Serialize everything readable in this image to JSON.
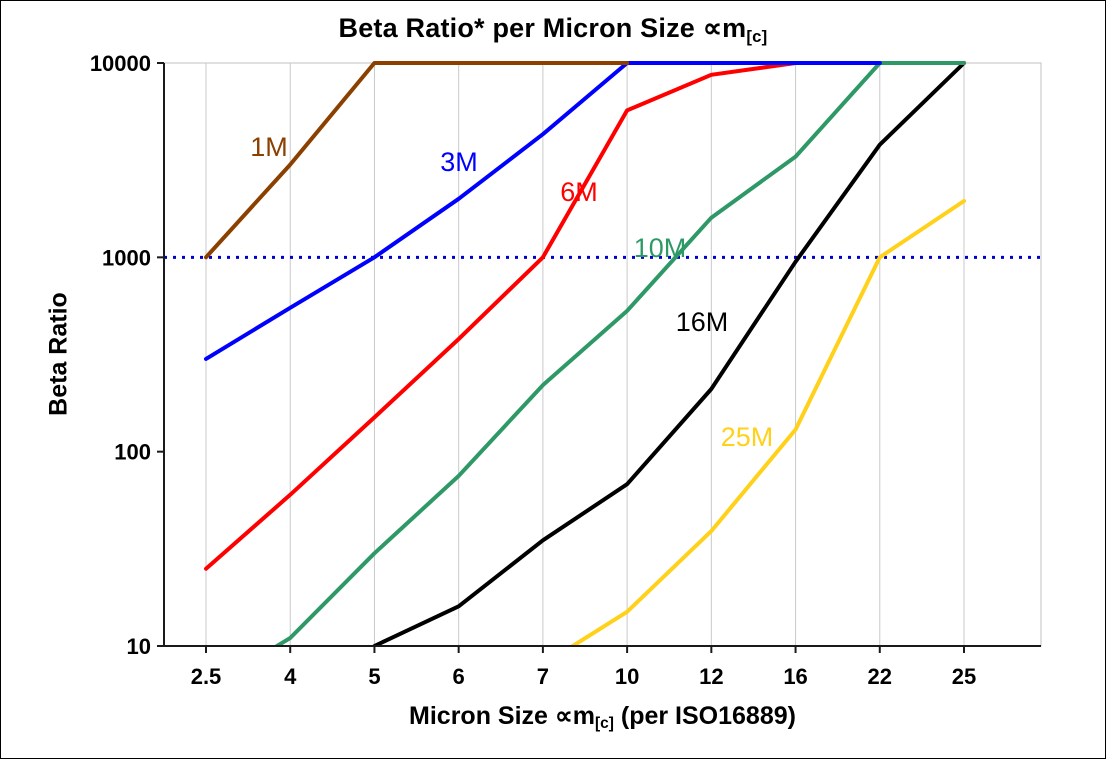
{
  "title": {
    "text": "Beta Ratio* per Micron Size ∝m",
    "subscript": "[c]"
  },
  "y_axis_label": "Beta Ratio",
  "x_axis_label": {
    "pre": "Micron Size ∝m",
    "subscript": "[c]",
    "post": " (per ISO16889)"
  },
  "chart_data": {
    "type": "line",
    "title": "Beta Ratio* per Micron Size ∝m[c]",
    "xlabel": "Micron Size ∝m[c] (per ISO16889)",
    "ylabel": "Beta Ratio",
    "x_categories": [
      "2.5",
      "4",
      "5",
      "6",
      "7",
      "10",
      "12",
      "16",
      "22",
      "25"
    ],
    "y_scale": "log",
    "ylim": [
      10,
      10000
    ],
    "y_ticks": [
      10000,
      1000,
      100,
      10
    ],
    "grid": "vertical",
    "legend_position": "inline-labels",
    "reference_line": {
      "y": 1000,
      "color": "#0000CC",
      "style": "dotted"
    },
    "series": [
      {
        "name": "25M",
        "color": "#FFD11A",
        "values": [
          null,
          null,
          null,
          null,
          8,
          15,
          39,
          130,
          1000,
          1950
        ],
        "label_pos": [
          746,
          436
        ]
      },
      {
        "name": "16M",
        "color": "#000000",
        "values": [
          null,
          null,
          10,
          16,
          35,
          68,
          210,
          950,
          3800,
          10000
        ],
        "label_pos": [
          701,
          321
        ]
      },
      {
        "name": "6M",
        "color": "#FF0000",
        "values": [
          25,
          60,
          150,
          380,
          1000,
          5700,
          8700,
          10000,
          10000,
          10000
        ],
        "label_pos": [
          578,
          191
        ]
      },
      {
        "name": "10M",
        "color": "#2E9966",
        "values": [
          6,
          11,
          30,
          75,
          220,
          530,
          1600,
          3300,
          10000,
          10000
        ],
        "label_pos": [
          659,
          247
        ]
      },
      {
        "name": "3M",
        "color": "#0000FF",
        "values": [
          300,
          550,
          1000,
          2000,
          4300,
          10000,
          10000,
          10000,
          10000,
          null
        ],
        "label_pos": [
          458,
          161
        ]
      },
      {
        "name": "1M",
        "color": "#8B4000",
        "values": [
          1000,
          3000,
          10000,
          10000,
          10000,
          10000,
          null,
          null,
          null,
          null
        ],
        "label_pos": [
          268,
          146
        ]
      }
    ]
  }
}
